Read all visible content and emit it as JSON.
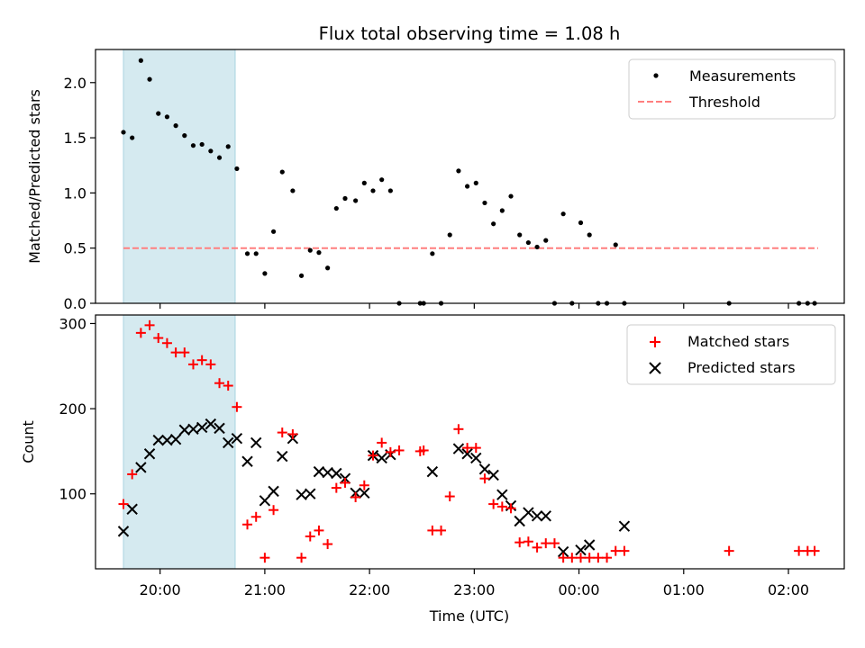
{
  "title": "Flux total observing time = 1.08 h",
  "chart_data": [
    {
      "type": "scatter",
      "panel": "top",
      "ylabel": "Matched/Predicted stars",
      "ylim": [
        0,
        2.3
      ],
      "yticks": [
        0.0,
        0.5,
        1.0,
        1.5,
        2.0
      ],
      "ytick_labels": [
        "0.0",
        "0.5",
        "1.0",
        "1.5",
        "2.0"
      ],
      "shaded_span": [
        "19:39",
        "20:43"
      ],
      "shade_color": "#d5eaf0",
      "series": [
        {
          "name": "Measurements",
          "marker": "dot",
          "color": "#000000",
          "points": [
            [
              "19:39",
              1.55
            ],
            [
              "19:44",
              1.5
            ],
            [
              "19:49",
              2.2
            ],
            [
              "19:54",
              2.03
            ],
            [
              "19:59",
              1.72
            ],
            [
              "20:04",
              1.69
            ],
            [
              "20:09",
              1.61
            ],
            [
              "20:14",
              1.52
            ],
            [
              "20:19",
              1.43
            ],
            [
              "20:24",
              1.44
            ],
            [
              "20:29",
              1.38
            ],
            [
              "20:34",
              1.32
            ],
            [
              "20:39",
              1.42
            ],
            [
              "20:44",
              1.22
            ],
            [
              "20:50",
              0.45
            ],
            [
              "20:55",
              0.45
            ],
            [
              "21:00",
              0.27
            ],
            [
              "21:05",
              0.65
            ],
            [
              "21:10",
              1.19
            ],
            [
              "21:16",
              1.02
            ],
            [
              "21:21",
              0.25
            ],
            [
              "21:26",
              0.48
            ],
            [
              "21:31",
              0.46
            ],
            [
              "21:36",
              0.32
            ],
            [
              "21:41",
              0.86
            ],
            [
              "21:46",
              0.95
            ],
            [
              "21:52",
              0.93
            ],
            [
              "21:57",
              1.09
            ],
            [
              "22:02",
              1.02
            ],
            [
              "22:07",
              1.12
            ],
            [
              "22:12",
              1.02
            ],
            [
              "22:17",
              0.0
            ],
            [
              "22:29",
              0.0
            ],
            [
              "22:31",
              0.0
            ],
            [
              "22:36",
              0.45
            ],
            [
              "22:41",
              0.0
            ],
            [
              "22:46",
              0.62
            ],
            [
              "22:51",
              1.2
            ],
            [
              "22:56",
              1.06
            ],
            [
              "23:01",
              1.09
            ],
            [
              "23:06",
              0.91
            ],
            [
              "23:11",
              0.72
            ],
            [
              "23:16",
              0.84
            ],
            [
              "23:21",
              0.97
            ],
            [
              "23:26",
              0.62
            ],
            [
              "23:31",
              0.55
            ],
            [
              "23:36",
              0.51
            ],
            [
              "23:41",
              0.57
            ],
            [
              "23:46",
              0.0
            ],
            [
              "23:51",
              0.81
            ],
            [
              "23:56",
              0.0
            ],
            [
              "00:01",
              0.73
            ],
            [
              "00:06",
              0.62
            ],
            [
              "00:11",
              0.0
            ],
            [
              "00:16",
              0.0
            ],
            [
              "00:21",
              0.53
            ],
            [
              "00:26",
              0.0
            ],
            [
              "01:26",
              0.0
            ],
            [
              "02:06",
              0.0
            ],
            [
              "02:11",
              0.0
            ],
            [
              "02:15",
              0.0
            ]
          ]
        },
        {
          "name": "Threshold",
          "marker": "dashed-line",
          "color": "#ff7f7f",
          "points": [
            [
              "19:39",
              0.5
            ],
            [
              "02:17",
              0.5
            ]
          ]
        }
      ],
      "legend": "top-right"
    },
    {
      "type": "scatter",
      "panel": "bottom",
      "xlabel": "Time (UTC)",
      "ylabel": "Count",
      "ylim": [
        12,
        310
      ],
      "yticks": [
        100,
        200,
        300
      ],
      "ytick_labels": [
        "100",
        "200",
        "300"
      ],
      "xlim": [
        "19:23",
        "02:32"
      ],
      "xticks": [
        "20:00",
        "21:00",
        "22:00",
        "23:00",
        "00:00",
        "01:00",
        "02:00"
      ],
      "shaded_span": [
        "19:39",
        "20:43"
      ],
      "shade_color": "#d5eaf0",
      "series": [
        {
          "name": "Matched stars",
          "marker": "plus",
          "color": "#ff0000",
          "points": [
            [
              "19:39",
              88
            ],
            [
              "19:44",
              123
            ],
            [
              "19:49",
              289
            ],
            [
              "19:54",
              298
            ],
            [
              "19:59",
              283
            ],
            [
              "20:04",
              277
            ],
            [
              "20:09",
              266
            ],
            [
              "20:14",
              266
            ],
            [
              "20:19",
              252
            ],
            [
              "20:24",
              257
            ],
            [
              "20:29",
              252
            ],
            [
              "20:34",
              230
            ],
            [
              "20:39",
              227
            ],
            [
              "20:44",
              202
            ],
            [
              "20:50",
              64
            ],
            [
              "20:55",
              73
            ],
            [
              "21:00",
              25
            ],
            [
              "21:05",
              81
            ],
            [
              "21:10",
              172
            ],
            [
              "21:16",
              170
            ],
            [
              "21:21",
              25
            ],
            [
              "21:26",
              50
            ],
            [
              "21:31",
              57
            ],
            [
              "21:36",
              41
            ],
            [
              "21:41",
              107
            ],
            [
              "21:46",
              113
            ],
            [
              "21:52",
              96
            ],
            [
              "21:57",
              110
            ],
            [
              "22:02",
              145
            ],
            [
              "22:07",
              160
            ],
            [
              "22:12",
              149
            ],
            [
              "22:17",
              151
            ],
            [
              "22:29",
              150
            ],
            [
              "22:31",
              151
            ],
            [
              "22:36",
              57
            ],
            [
              "22:41",
              57
            ],
            [
              "22:46",
              97
            ],
            [
              "22:51",
              176
            ],
            [
              "22:56",
              154
            ],
            [
              "23:01",
              154
            ],
            [
              "23:06",
              118
            ],
            [
              "23:11",
              88
            ],
            [
              "23:16",
              85
            ],
            [
              "23:21",
              83
            ],
            [
              "23:26",
              43
            ],
            [
              "23:31",
              44
            ],
            [
              "23:36",
              37
            ],
            [
              "23:41",
              42
            ],
            [
              "23:46",
              42
            ],
            [
              "23:51",
              25
            ],
            [
              "23:56",
              25
            ],
            [
              "00:01",
              25
            ],
            [
              "00:06",
              25
            ],
            [
              "00:11",
              25
            ],
            [
              "00:16",
              25
            ],
            [
              "00:21",
              33
            ],
            [
              "00:26",
              33
            ],
            [
              "01:26",
              33
            ],
            [
              "02:06",
              33
            ],
            [
              "02:11",
              33
            ],
            [
              "02:15",
              33
            ]
          ]
        },
        {
          "name": "Predicted stars",
          "marker": "x",
          "color": "#000000",
          "points": [
            [
              "19:39",
              56
            ],
            [
              "19:44",
              82
            ],
            [
              "19:49",
              131
            ],
            [
              "19:54",
              147
            ],
            [
              "19:59",
              163
            ],
            [
              "20:04",
              163
            ],
            [
              "20:09",
              164
            ],
            [
              "20:14",
              175
            ],
            [
              "20:19",
              176
            ],
            [
              "20:24",
              178
            ],
            [
              "20:29",
              182
            ],
            [
              "20:34",
              177
            ],
            [
              "20:39",
              160
            ],
            [
              "20:44",
              165
            ],
            [
              "20:50",
              138
            ],
            [
              "20:55",
              160
            ],
            [
              "21:00",
              92
            ],
            [
              "21:05",
              103
            ],
            [
              "21:10",
              144
            ],
            [
              "21:16",
              165
            ],
            [
              "21:21",
              99
            ],
            [
              "21:26",
              100
            ],
            [
              "21:31",
              126
            ],
            [
              "21:36",
              125
            ],
            [
              "21:41",
              124
            ],
            [
              "21:46",
              118
            ],
            [
              "21:52",
              101
            ],
            [
              "21:57",
              101
            ],
            [
              "22:02",
              145
            ],
            [
              "22:07",
              142
            ],
            [
              "22:12",
              146
            ],
            [
              "22:36",
              126
            ],
            [
              "22:51",
              153
            ],
            [
              "22:56",
              147
            ],
            [
              "23:01",
              142
            ],
            [
              "23:06",
              129
            ],
            [
              "23:11",
              122
            ],
            [
              "23:16",
              99
            ],
            [
              "23:21",
              86
            ],
            [
              "23:26",
              68
            ],
            [
              "23:31",
              78
            ],
            [
              "23:36",
              74
            ],
            [
              "23:41",
              74
            ],
            [
              "23:51",
              32
            ],
            [
              "00:01",
              34
            ],
            [
              "00:06",
              40
            ],
            [
              "00:26",
              62
            ]
          ]
        }
      ],
      "legend": "top-right"
    }
  ]
}
